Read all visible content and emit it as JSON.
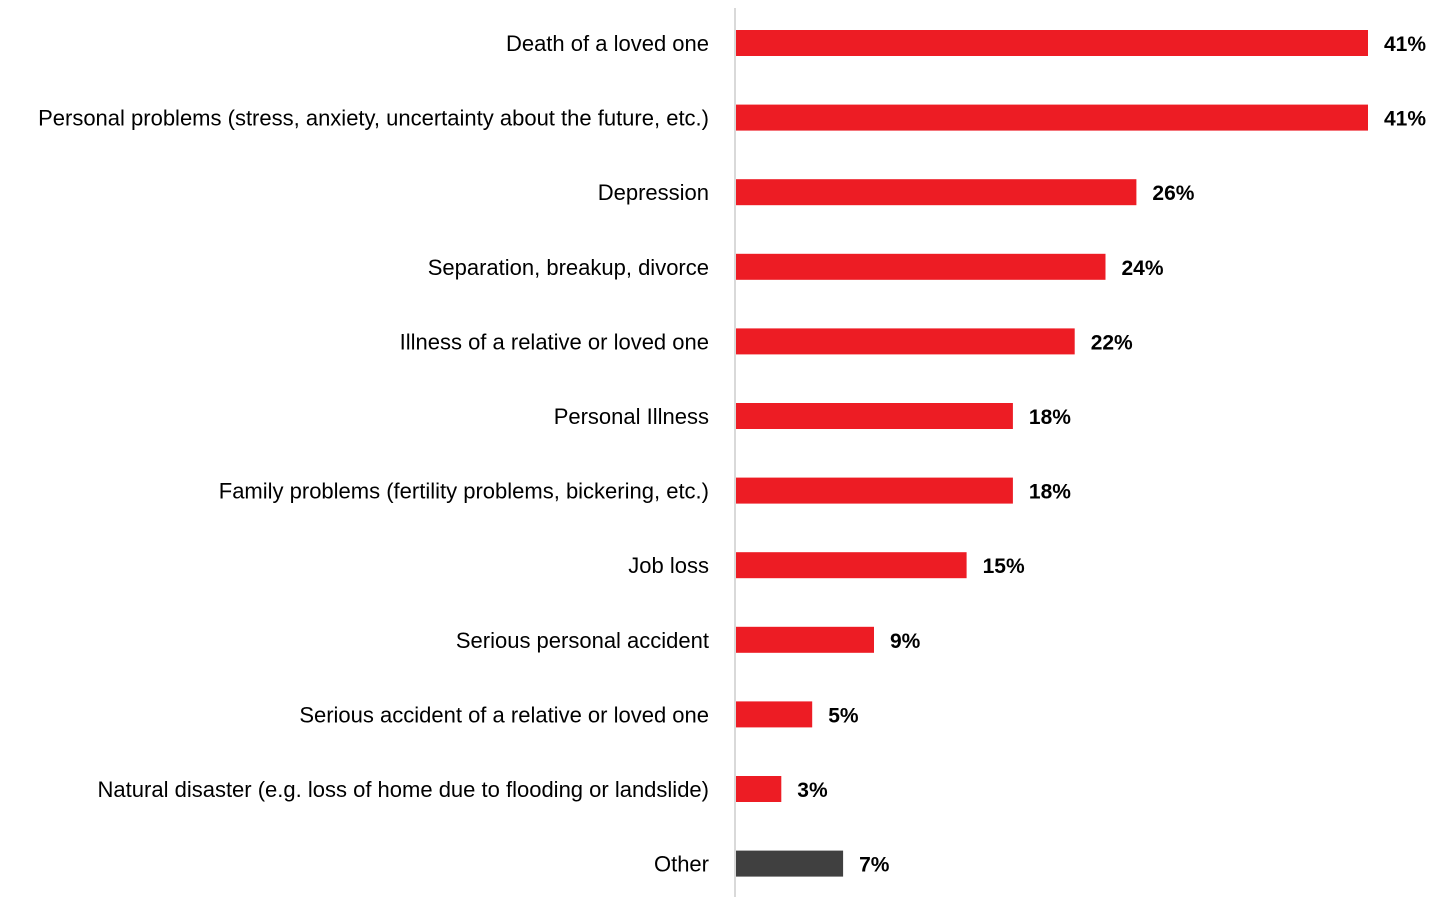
{
  "chart_data": {
    "type": "bar",
    "orientation": "horizontal",
    "title": "",
    "xlabel": "",
    "ylabel": "",
    "xlim": [
      0,
      41
    ],
    "grid": false,
    "legend": "none",
    "value_suffix": "%",
    "categories": [
      "Death of a loved one",
      "Personal problems (stress, anxiety, uncertainty about the future, etc.)",
      "Depression",
      "Separation, breakup, divorce",
      "Illness of a relative or loved one",
      "Personal Illness",
      "Family problems (fertility problems, bickering, etc.)",
      "Job loss",
      "Serious personal accident",
      "Serious accident of a relative or loved one",
      "Natural disaster (e.g. loss of home due to flooding or landslide)",
      "Other"
    ],
    "values": [
      41,
      41,
      26,
      24,
      22,
      18,
      18,
      15,
      9,
      5,
      3,
      7
    ],
    "value_labels": [
      "41%",
      "41%",
      "26%",
      "24%",
      "22%",
      "18%",
      "18%",
      "15%",
      "9%",
      "5%",
      "3%",
      "7%"
    ],
    "bar_colors": [
      "#ED1C24",
      "#ED1C24",
      "#ED1C24",
      "#ED1C24",
      "#ED1C24",
      "#ED1C24",
      "#ED1C24",
      "#ED1C24",
      "#ED1C24",
      "#ED1C24",
      "#ED1C24",
      "#404040"
    ],
    "axis_line_color": "#D9D9D9"
  }
}
